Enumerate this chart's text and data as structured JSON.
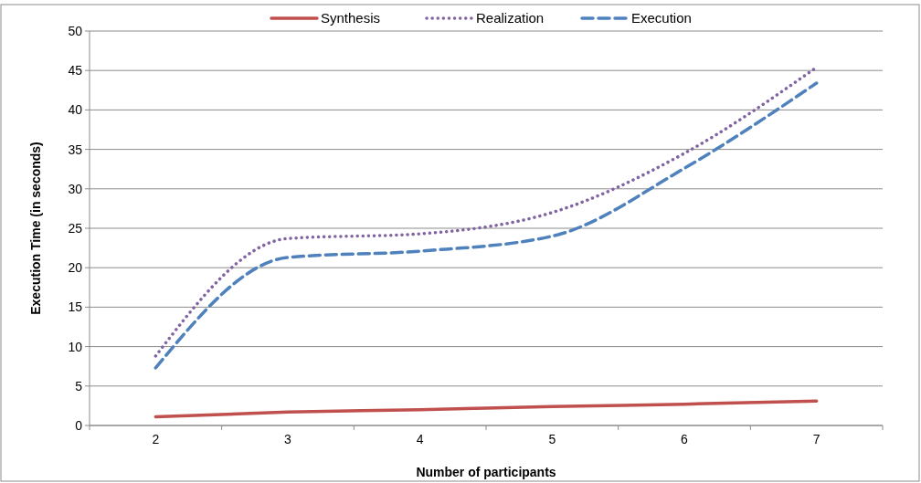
{
  "chart_data": {
    "type": "line",
    "xlabel": "Number of participants",
    "ylabel": "Execution Time (in seconds)",
    "categories": [
      "2",
      "3",
      "4",
      "5",
      "6",
      "7"
    ],
    "series": [
      {
        "name": "Synthesis",
        "color": "#c0504d",
        "line_style": "solid",
        "values": [
          1.1,
          1.7,
          2.0,
          2.4,
          2.7,
          3.1
        ]
      },
      {
        "name": "Realization",
        "color": "#8064a2",
        "line_style": "dotted",
        "values": [
          8.8,
          23.7,
          24.3,
          27.0,
          34.5,
          45.4
        ]
      },
      {
        "name": "Execution",
        "color": "#4f81bd",
        "line_style": "dashed",
        "values": [
          7.3,
          21.3,
          22.1,
          24.0,
          32.6,
          43.4
        ]
      }
    ],
    "ylim": [
      0,
      50
    ],
    "yticks": [
      0,
      5,
      10,
      15,
      20,
      25,
      30,
      35,
      40,
      45,
      50
    ],
    "grid": "y",
    "legend": "top",
    "marker": "none"
  }
}
